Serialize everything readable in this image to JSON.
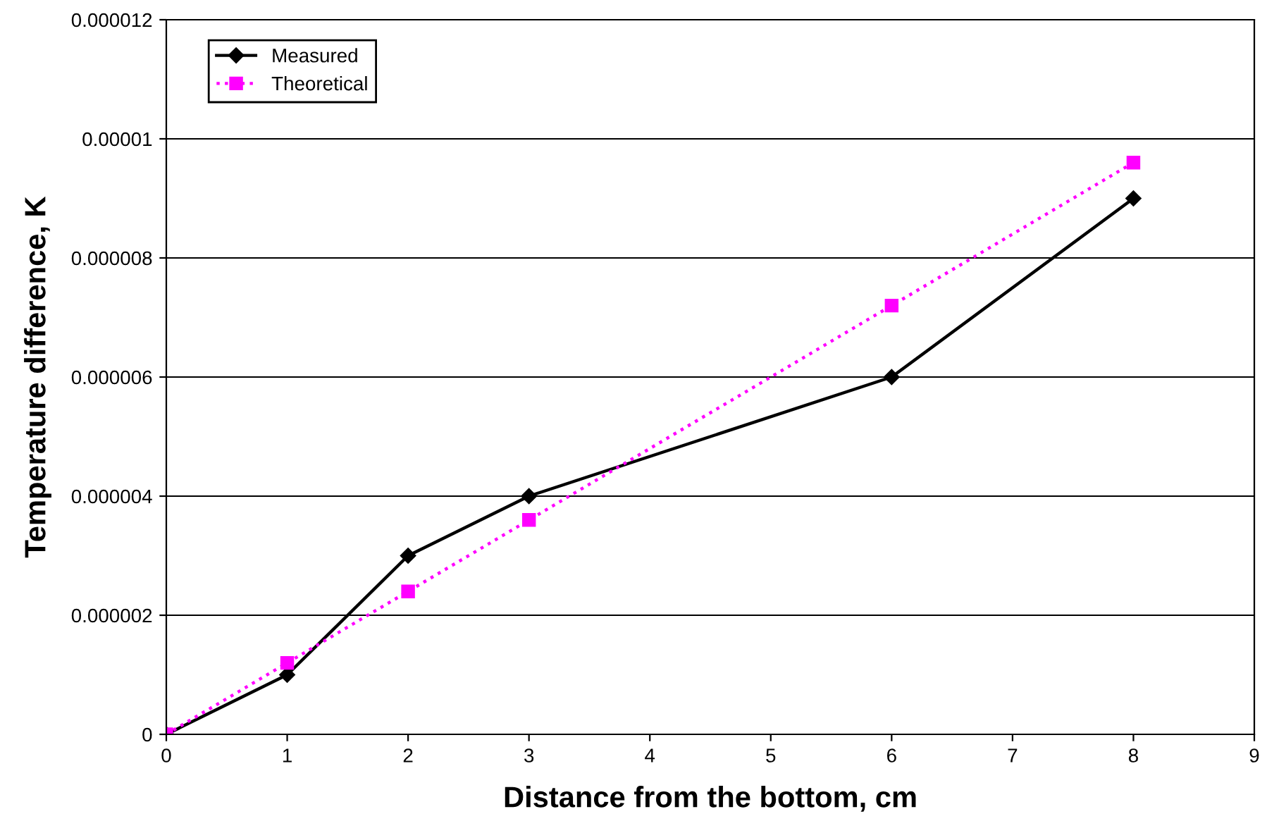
{
  "chart_data": {
    "type": "line",
    "xlabel": "Distance from the bottom, cm",
    "ylabel": "Temperature difference, K",
    "series": [
      {
        "name": "Measured",
        "color": "#000000",
        "marker": "diamond",
        "line_style": "solid",
        "x": [
          0,
          1,
          2,
          3,
          6,
          8
        ],
        "values": [
          0,
          1e-06,
          3e-06,
          4e-06,
          6e-06,
          9e-06
        ]
      },
      {
        "name": "Theoretical",
        "color": "#ff00ff",
        "marker": "square",
        "line_style": "dotted",
        "x": [
          0,
          1,
          2,
          3,
          6,
          8
        ],
        "values": [
          0,
          1.2e-06,
          2.4e-06,
          3.6e-06,
          7.2e-06,
          9.6e-06
        ]
      }
    ],
    "xlim": [
      0,
      9
    ],
    "xticks": [
      0,
      1,
      2,
      3,
      4,
      5,
      6,
      7,
      8,
      9
    ],
    "ylim": [
      0,
      1.2e-05
    ],
    "yticks": [
      0,
      {
        "value": 2e-06,
        "label": "0.000002"
      },
      {
        "value": 4e-06,
        "label": "0.000004"
      },
      {
        "value": 6e-06,
        "label": "0.000006"
      },
      {
        "value": 8e-06,
        "label": "0.000008"
      },
      {
        "value": 1e-05,
        "label": "0.00001"
      },
      {
        "value": 1.2e-05,
        "label": "0.000012"
      }
    ],
    "grid": "y",
    "legend": "top left"
  }
}
